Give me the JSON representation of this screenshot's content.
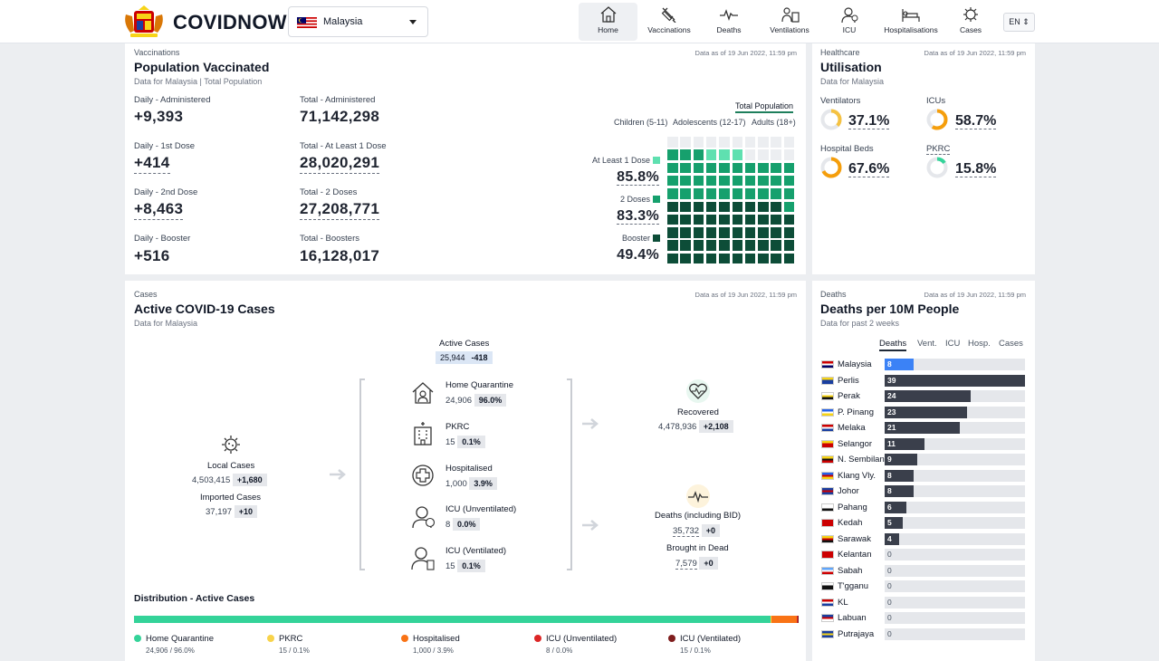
{
  "header": {
    "brand": "COVIDNOW",
    "country": "Malaysia",
    "nav": [
      {
        "label": "Home",
        "icon": "home-icon",
        "active": true
      },
      {
        "label": "Vaccinations",
        "icon": "syringe-icon"
      },
      {
        "label": "Deaths",
        "icon": "pulse-line-icon"
      },
      {
        "label": "Ventilations",
        "icon": "ventilator-icon"
      },
      {
        "label": "ICU",
        "icon": "icu-doctor-icon"
      },
      {
        "label": "Hospitalisations",
        "icon": "hospital-bed-icon"
      },
      {
        "label": "Cases",
        "icon": "virus-icon"
      }
    ],
    "lang": "EN ⇕"
  },
  "vaccinations": {
    "eyebrow": "Vaccinations",
    "asof": "Data as of 19 Jun 2022, 11:59 pm",
    "title": "Population Vaccinated",
    "subtitle": "Data for Malaysia | Total Population",
    "stats": [
      {
        "label": "Daily - Administered",
        "value": "+9,393",
        "dotted": false
      },
      {
        "label": "Total - Administered",
        "value": "71,142,298",
        "dotted": false
      },
      {
        "label": "Daily - 1st Dose",
        "value": "+414",
        "dotted": true
      },
      {
        "label": "Total - At Least 1 Dose",
        "value": "28,020,291",
        "dotted": true
      },
      {
        "label": "Daily - 2nd Dose",
        "value": "+8,463",
        "dotted": true
      },
      {
        "label": "Total - 2 Doses",
        "value": "27,208,771",
        "dotted": true
      },
      {
        "label": "Daily - Booster",
        "value": "+516",
        "dotted": false
      },
      {
        "label": "Total - Boosters",
        "value": "16,128,017",
        "dotted": false
      }
    ],
    "tabs": [
      "Total Population",
      "Children (5-11)",
      "Adolescents (12-17)",
      "Adults (18+)"
    ],
    "doses": [
      {
        "label": "At Least 1 Dose",
        "pct": "85.8%",
        "color": "#5fe0b0",
        "fraction": 0.858,
        "dotted": true
      },
      {
        "label": "2 Doses",
        "pct": "83.3%",
        "color": "#16a06d",
        "fraction": 0.833,
        "dotted": true
      },
      {
        "label": "Booster",
        "pct": "49.4%",
        "color": "#0d4d38",
        "fraction": 0.494,
        "dotted": false
      }
    ]
  },
  "healthcare": {
    "eyebrow": "Healthcare",
    "asof": "Data as of 19 Jun 2022, 11:59 pm",
    "title": "Utilisation",
    "subtitle": "Data for Malaysia",
    "items": [
      {
        "label": "Ventilators",
        "value": "37.1%",
        "fraction": 0.371,
        "color": "#f5c242"
      },
      {
        "label": "ICUs",
        "value": "58.7%",
        "fraction": 0.587,
        "color": "#f59e0b"
      },
      {
        "label": "Hospital Beds",
        "value": "67.6%",
        "fraction": 0.676,
        "color": "#f59e0b"
      },
      {
        "label": "PKRC",
        "value": "15.8%",
        "fraction": 0.158,
        "color": "#34d399"
      }
    ]
  },
  "cases": {
    "eyebrow": "Cases",
    "asof": "Data as of 19 Jun 2022, 11:59 pm",
    "title": "Active COVID-19 Cases",
    "subtitle": "Data for Malaysia",
    "active": {
      "label": "Active Cases",
      "value": "25,944",
      "delta": "-418"
    },
    "local": {
      "label": "Local Cases",
      "value": "4,503,415",
      "delta": "+1,680"
    },
    "imported": {
      "label": "Imported Cases",
      "value": "37,197",
      "delta": "+10"
    },
    "middle": [
      {
        "label": "Home Quarantine",
        "value": "24,906",
        "pct": "96.0%",
        "icon": "home-quarantine-icon"
      },
      {
        "label": "PKRC",
        "value": "15",
        "pct": "0.1%",
        "icon": "pkrc-building-icon"
      },
      {
        "label": "Hospitalised",
        "value": "1,000",
        "pct": "3.9%",
        "icon": "hospital-cross-icon"
      },
      {
        "label": "ICU (Unventilated)",
        "value": "8",
        "pct": "0.0%",
        "icon": "icu-unventilated-icon"
      },
      {
        "label": "ICU (Ventilated)",
        "value": "15",
        "pct": "0.1%",
        "icon": "icu-ventilated-icon"
      }
    ],
    "recovered": {
      "label": "Recovered",
      "value": "4,478,936",
      "delta": "+2,108"
    },
    "deaths": {
      "label": "Deaths (including BID)",
      "value": "35,732",
      "delta": "+0"
    },
    "bid": {
      "label": "Brought in Dead",
      "value": "7,579",
      "delta": "+0"
    },
    "distribution": {
      "title": "Distribution - Active Cases",
      "items": [
        {
          "label": "Home Quarantine",
          "sub": "24,906 / 96.0%",
          "color": "#34d399",
          "fraction": 0.96
        },
        {
          "label": "PKRC",
          "sub": "15 / 0.1%",
          "color": "#f8d34a",
          "fraction": 0.001
        },
        {
          "label": "Hospitalised",
          "sub": "1,000 / 3.9%",
          "color": "#f97316",
          "fraction": 0.039
        },
        {
          "label": "ICU (Unventilated)",
          "sub": "8 / 0.0%",
          "color": "#dc2626",
          "fraction": 0.0003
        },
        {
          "label": "ICU (Ventilated)",
          "sub": "15 / 0.1%",
          "color": "#7f1d1d",
          "fraction": 0.001
        }
      ]
    }
  },
  "deaths": {
    "eyebrow": "Deaths",
    "asof": "Data as of 19 Jun 2022, 11:59 pm",
    "title": "Deaths per 10M People",
    "subtitle": "Data for past 2 weeks",
    "tabs": [
      "Deaths",
      "Vent.",
      "ICU",
      "Hosp.",
      "Cases"
    ],
    "max": 39,
    "states": [
      {
        "name": "Malaysia",
        "value": 8,
        "highlight": true,
        "flag": [
          "#cc0001",
          "#ffffff",
          "#010066"
        ]
      },
      {
        "name": "Perlis",
        "value": 39,
        "flag": [
          "#f7d417",
          "#1a3fa0",
          "#1a3fa0"
        ]
      },
      {
        "name": "Perak",
        "value": 24,
        "flag": [
          "#ffffff",
          "#f7d417",
          "#111111"
        ]
      },
      {
        "name": "P. Pinang",
        "value": 23,
        "flag": [
          "#2563eb",
          "#ffffff",
          "#f7d417"
        ]
      },
      {
        "name": "Melaka",
        "value": 21,
        "flag": [
          "#cc0001",
          "#ffffff",
          "#1a3fa0"
        ]
      },
      {
        "name": "Selangor",
        "value": 11,
        "flag": [
          "#f7d417",
          "#cc0001",
          "#cc0001"
        ]
      },
      {
        "name": "N. Sembilan",
        "value": 9,
        "flag": [
          "#f7d417",
          "#111111",
          "#cc0001"
        ]
      },
      {
        "name": "Klang Vly.",
        "value": 8,
        "flag": [
          "#2563eb",
          "#cc0001",
          "#f7d417"
        ]
      },
      {
        "name": "Johor",
        "value": 8,
        "flag": [
          "#1a3fa0",
          "#cc0001",
          "#1a3fa0"
        ]
      },
      {
        "name": "Pahang",
        "value": 6,
        "flag": [
          "#ffffff",
          "#ffffff",
          "#111111"
        ]
      },
      {
        "name": "Kedah",
        "value": 5,
        "flag": [
          "#cc0001",
          "#cc0001",
          "#cc0001"
        ]
      },
      {
        "name": "Sarawak",
        "value": 4,
        "flag": [
          "#f7d417",
          "#cc0001",
          "#111111"
        ]
      },
      {
        "name": "Kelantan",
        "value": 0,
        "flag": [
          "#cc0001",
          "#cc0001",
          "#cc0001"
        ]
      },
      {
        "name": "Sabah",
        "value": 0,
        "flag": [
          "#60a5fa",
          "#ffffff",
          "#cc0001"
        ]
      },
      {
        "name": "T'gganu",
        "value": 0,
        "flag": [
          "#ffffff",
          "#111111",
          "#111111"
        ]
      },
      {
        "name": "KL",
        "value": 0,
        "flag": [
          "#cc0001",
          "#ffffff",
          "#1a3fa0"
        ]
      },
      {
        "name": "Labuan",
        "value": 0,
        "flag": [
          "#1a3fa0",
          "#cc0001",
          "#ffffff"
        ]
      },
      {
        "name": "Putrajaya",
        "value": 0,
        "flag": [
          "#1a3fa0",
          "#f7d417",
          "#1a3fa0"
        ]
      }
    ]
  }
}
